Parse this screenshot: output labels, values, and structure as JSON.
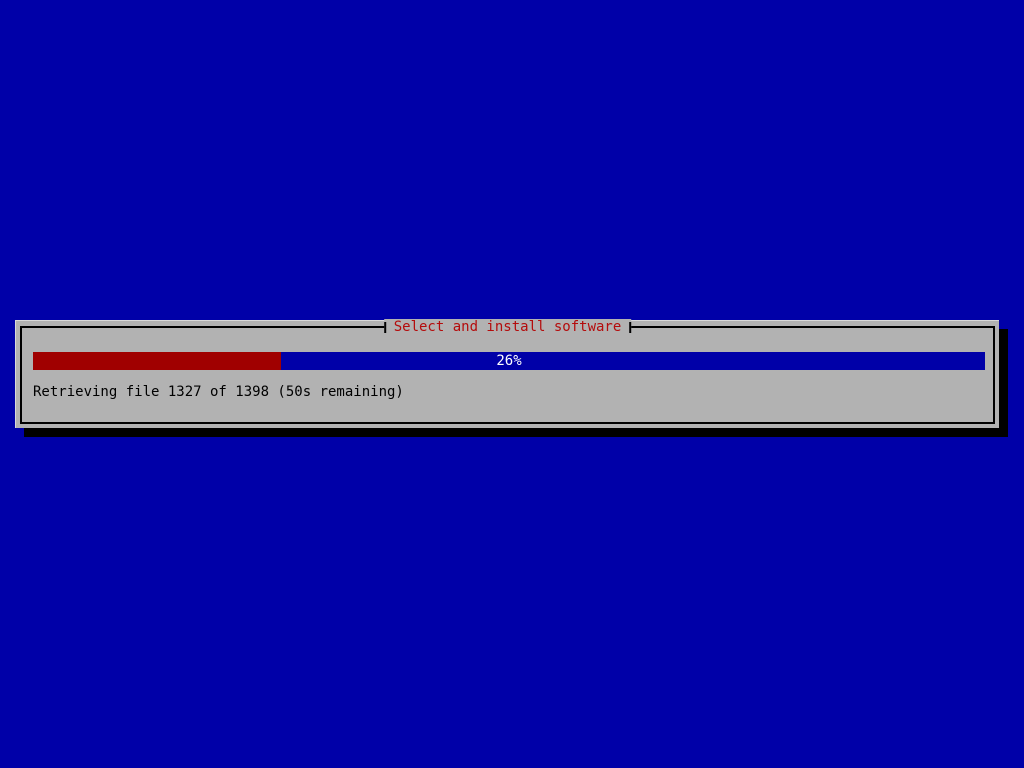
{
  "screen": {
    "background_color": "#0000a8"
  },
  "dialog": {
    "title": "Select and install software",
    "title_color": "#b40c0c",
    "background_color": "#b2b2b2",
    "status_text": "Retrieving file 1327 of 1398 (50s remaining)",
    "progress": {
      "percent": 26,
      "percent_label": "26%",
      "filled_color": "#a00000",
      "empty_color": "#0000a8",
      "label_color": "#ffffff"
    }
  }
}
